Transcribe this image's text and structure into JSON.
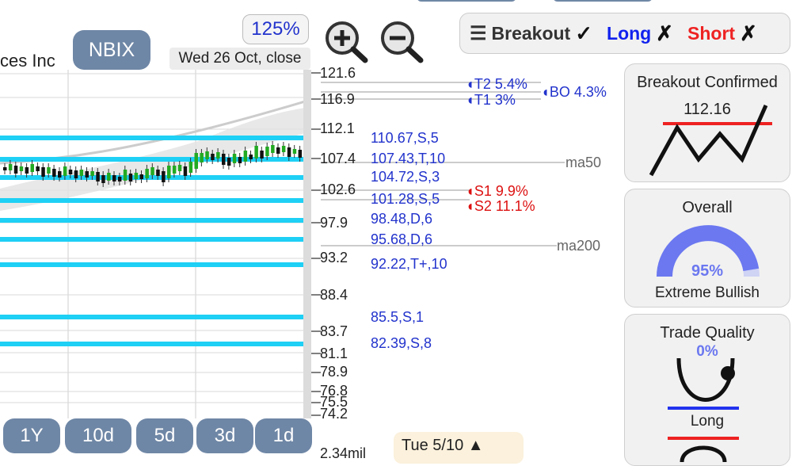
{
  "header": {
    "company_partial": "ces Inc",
    "ticker": "NBIX",
    "zoom": "125%",
    "date_label": "Wed 26 Oct, close"
  },
  "toolbar": {
    "zoom_in_icon": "magnifier-plus-icon",
    "zoom_out_icon": "magnifier-minus-icon"
  },
  "signals": {
    "breakout_label": "Breakout",
    "breakout_mark": "✓",
    "long_label": "Long",
    "long_mark": "✗",
    "short_label": "Short",
    "short_mark": "✗"
  },
  "axis": {
    "ticks": [
      "121.6",
      "116.9",
      "112.1",
      "107.4",
      "102.6",
      "97.9",
      "93.2",
      "88.4",
      "83.7",
      "81.1",
      "78.9",
      "76.8",
      "75.5",
      "74.2"
    ],
    "volume": "2.34mil"
  },
  "levels": [
    {
      "label": "110.67,S,5"
    },
    {
      "label": "107.43,T,10"
    },
    {
      "label": "104.72,S,3"
    },
    {
      "label": "101.28,S,5"
    },
    {
      "label": "98.48,D,6"
    },
    {
      "label": "95.68,D,6"
    },
    {
      "label": "92.22,T+,10"
    },
    {
      "label": "85.5,S,1"
    },
    {
      "label": "82.39,S,8"
    }
  ],
  "ma": {
    "ma50": "ma50",
    "ma200": "ma200"
  },
  "targets": {
    "t2": "T2 5.4%",
    "t1": "T1 3%",
    "bo": "BO 4.3%",
    "s1": "S1 9.9%",
    "s2": "S2 11.1%"
  },
  "timeframes": [
    "1Y",
    "10d",
    "5d",
    "3d",
    "1d"
  ],
  "footer_date": "Tue 5/10 ▲",
  "cards": {
    "breakout": {
      "title": "Breakout Confirmed",
      "value": "112.16"
    },
    "overall": {
      "title": "Overall",
      "percent": "95%",
      "verdict": "Extreme Bullish",
      "level": 0.95
    },
    "quality": {
      "title": "Trade Quality",
      "percent": "0%",
      "long": "Long"
    }
  },
  "colors": {
    "pill": "#6f87a6",
    "level_line": "#1ed0f5",
    "blue_text": "#2233cc",
    "red_text": "#dd1111",
    "gauge": "#6b78f0",
    "candle_up": "#22aa22",
    "candle_down": "#111111"
  }
}
